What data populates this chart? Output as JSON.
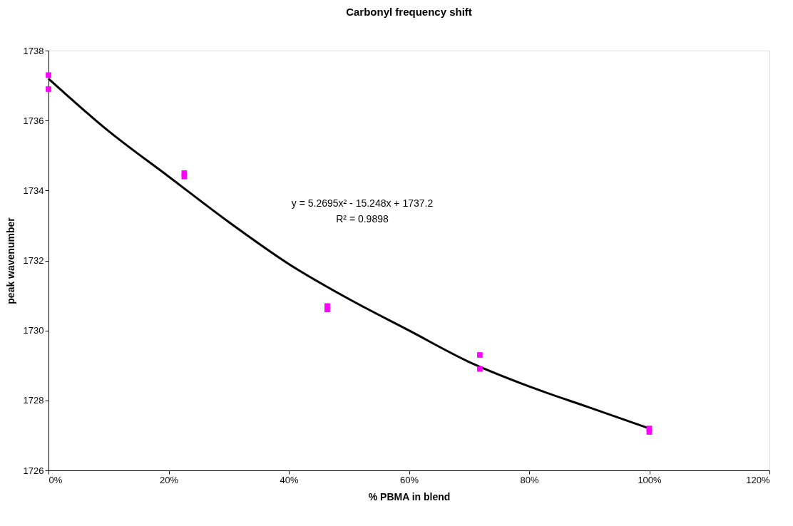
{
  "chart_data": {
    "type": "scatter",
    "title": "Carbonyl frequency shift",
    "xlabel": "% PBMA in blend",
    "ylabel": "peak wavenumber",
    "xlim": [
      0,
      120
    ],
    "xticks": [
      {
        "value": 0,
        "label": "0%"
      },
      {
        "value": 20,
        "label": "20%"
      },
      {
        "value": 40,
        "label": "40%"
      },
      {
        "value": 60,
        "label": "60%"
      },
      {
        "value": 80,
        "label": "80%"
      },
      {
        "value": 100,
        "label": "100%"
      },
      {
        "value": 120,
        "label": "120%"
      }
    ],
    "ylim": [
      1726,
      1738
    ],
    "yticks": [
      1726,
      1728,
      1730,
      1732,
      1734,
      1736,
      1738
    ],
    "grid": false,
    "legend": false,
    "series": [
      {
        "marker": "square",
        "color": "#ff00ff",
        "x": [
          0,
          0,
          22.6,
          22.6,
          46.4,
          46.4,
          71.8,
          71.8,
          100,
          100
        ],
        "values": [
          1737.3,
          1736.9,
          1734.5,
          1734.4,
          1730.7,
          1730.6,
          1729.3,
          1728.9,
          1727.2,
          1727.1
        ]
      },
      {
        "type": "line",
        "marker": "none",
        "color": "#000000",
        "x": [
          0,
          10,
          20,
          30,
          40,
          50,
          60,
          70,
          80,
          90,
          100
        ],
        "values": [
          1737.2,
          1735.7,
          1734.4,
          1733.1,
          1731.9,
          1730.9,
          1730.0,
          1729.1,
          1728.4,
          1727.8,
          1727.2
        ]
      }
    ],
    "annotations": [
      "y = 5.2695x² - 15.248x + 1737.2",
      "R² = 0.9898"
    ]
  }
}
